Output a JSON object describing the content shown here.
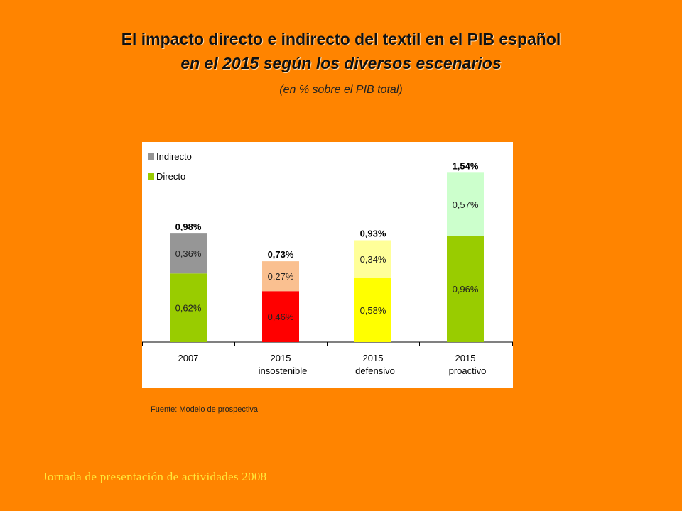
{
  "header": {
    "title_line1": "El impacto directo e indirecto del textil en el PIB español",
    "title_line2": "en el 2015 según los diversos escenarios",
    "subtitle": "(en % sobre el PIB  total)"
  },
  "source": "Fuente: Modelo de prospectiva",
  "footer": "Jornada de presentación de actividades 2008",
  "chart_data": {
    "type": "bar",
    "stacked": true,
    "categories": [
      [
        "2007"
      ],
      [
        "2015",
        "insostenible"
      ],
      [
        "2015",
        "defensivo"
      ],
      [
        "2015",
        "proactivo"
      ]
    ],
    "series": [
      {
        "name": "Directo",
        "values": [
          0.62,
          0.46,
          0.58,
          0.96
        ],
        "labels": [
          "0,62%",
          "0,46%",
          "0,58%",
          "0,96%"
        ],
        "colors": [
          "#99cc00",
          "#ff0000",
          "#ffff00",
          "#99cc00"
        ],
        "legend_color": "#99cc00"
      },
      {
        "name": "Indirecto",
        "values": [
          0.36,
          0.27,
          0.34,
          0.57
        ],
        "labels": [
          "0,36%",
          "0,27%",
          "0,34%",
          "0,57%"
        ],
        "colors": [
          "#969696",
          "#fac090",
          "#ffff99",
          "#ccffcc"
        ],
        "legend_color": "#969696"
      }
    ],
    "totals": [
      "0,98%",
      "0,73%",
      "0,93%",
      "1,54%"
    ],
    "legend_position": "top-left",
    "grid": false
  }
}
